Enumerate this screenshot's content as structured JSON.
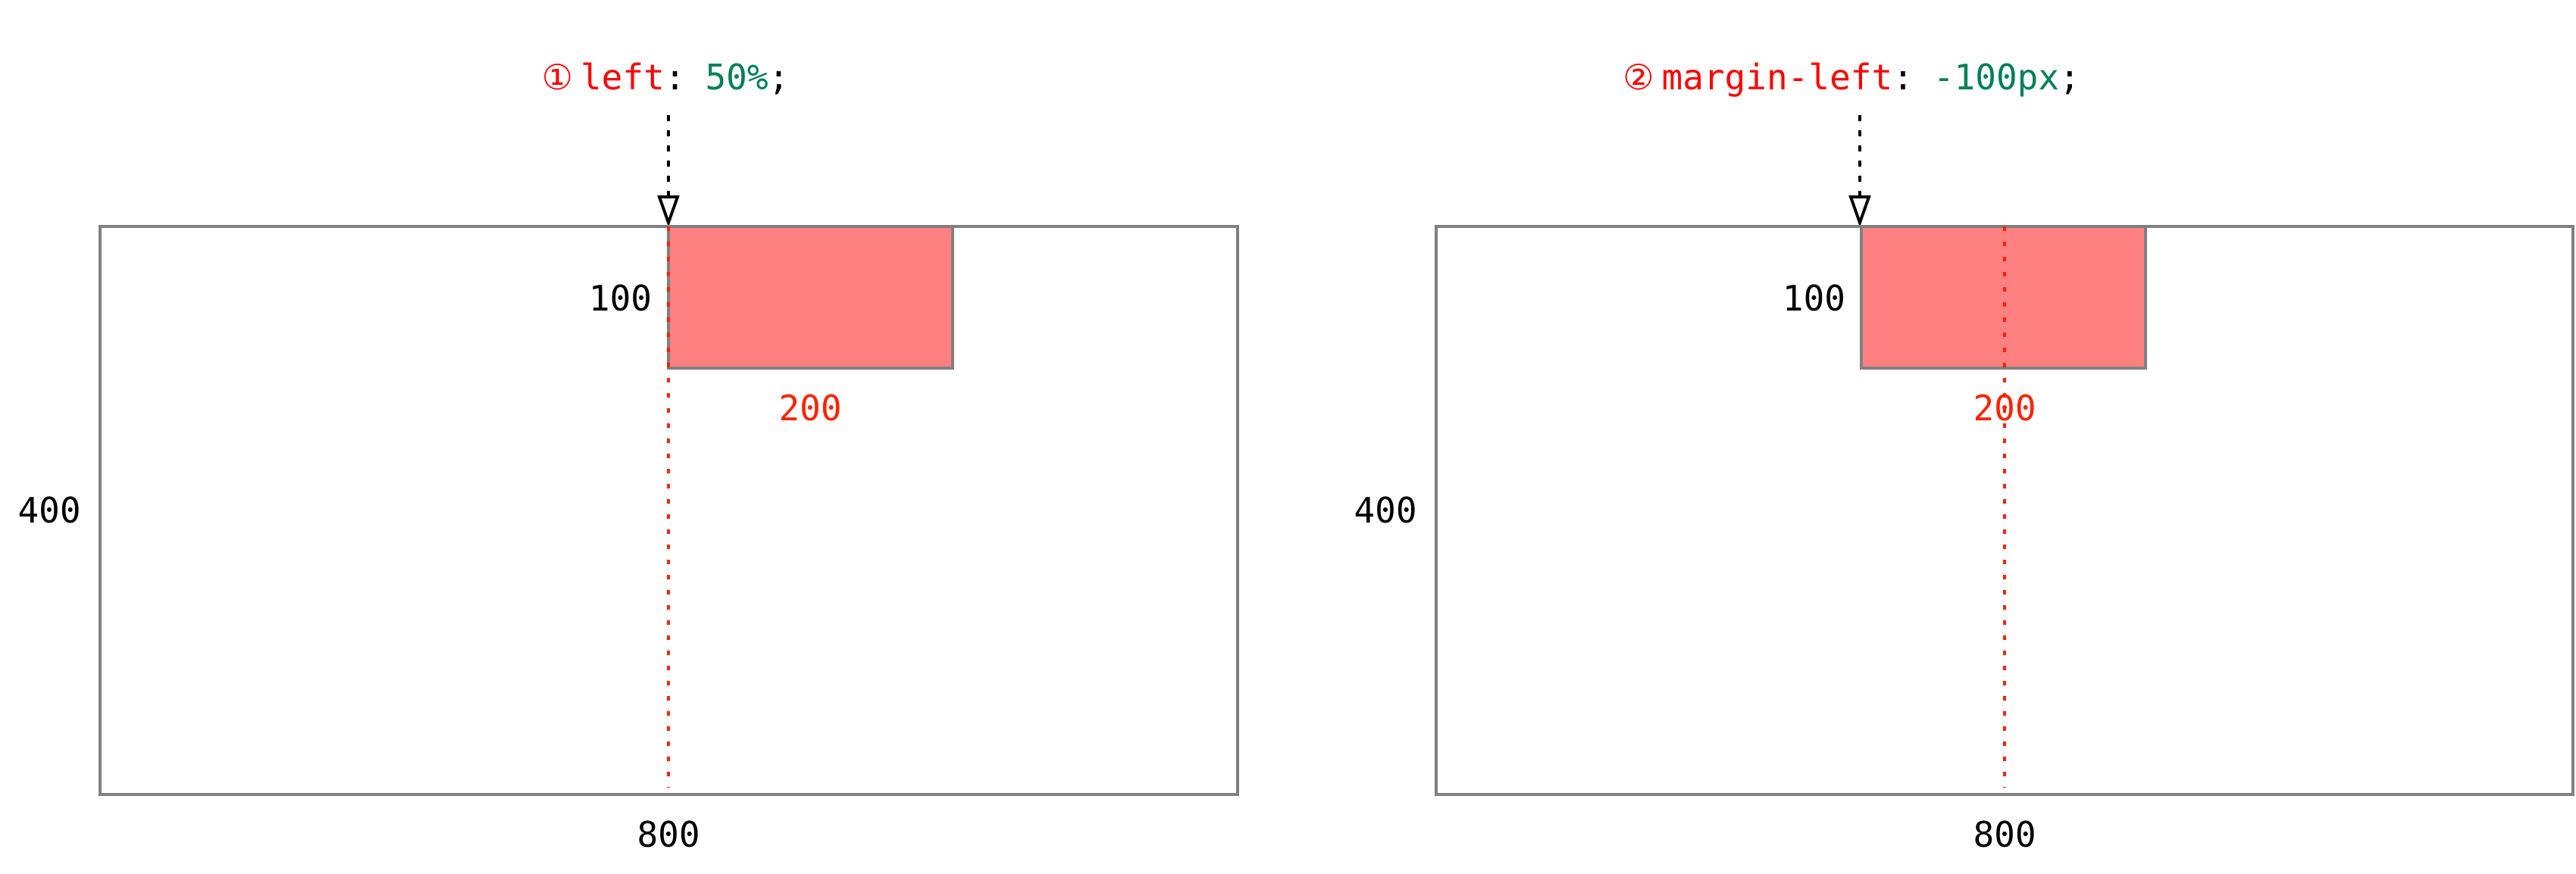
{
  "colors": {
    "property": "#ff0000",
    "value": "#008055",
    "punct": "#000000",
    "dimension_red": "#ff2200",
    "box_fill": "#ff8080",
    "box_stroke": "#808080",
    "guide_line": "#ff2200"
  },
  "panels": [
    {
      "step_marker": "①",
      "property": "left",
      "colon": ":",
      "value": "50%",
      "semicolon": ";",
      "container_height": "400",
      "container_width": "800",
      "box_height": "100",
      "box_width": "200"
    },
    {
      "step_marker": "②",
      "property": "margin-left",
      "colon": ":",
      "value": "-100px",
      "semicolon": ";",
      "container_height": "400",
      "container_width": "800",
      "box_height": "100",
      "box_width": "200"
    }
  ]
}
